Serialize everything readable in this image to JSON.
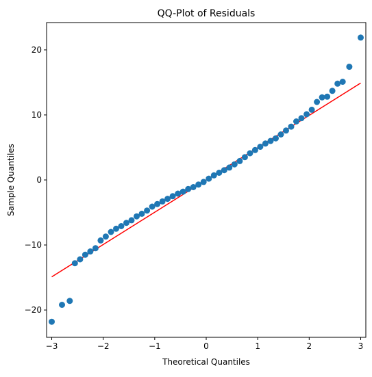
{
  "chart_data": {
    "type": "scatter",
    "title": "QQ-Plot of Residuals",
    "xlabel": "Theoretical Quantiles",
    "ylabel": "Sample Quantiles",
    "xlim": [
      -3.1,
      3.1
    ],
    "ylim": [
      -24.2,
      24.2
    ],
    "xticks": [
      -3,
      -2,
      -1,
      0,
      1,
      2,
      3
    ],
    "yticks": [
      -20,
      -10,
      0,
      10,
      20
    ],
    "xtick_labels": [
      "−3",
      "−2",
      "−1",
      "0",
      "1",
      "2",
      "3"
    ],
    "ytick_labels": [
      "−20",
      "−10",
      "0",
      "10",
      "20"
    ],
    "grid": false,
    "point_color": "#1f77b4",
    "line_color": "#ff0000",
    "reference_line": {
      "x": [
        -3.0,
        3.0
      ],
      "y": [
        -14.9,
        14.9
      ]
    },
    "points": [
      [
        -3.0,
        -21.8
      ],
      [
        -2.8,
        -19.2
      ],
      [
        -2.65,
        -18.6
      ],
      [
        -2.55,
        -12.8
      ],
      [
        -2.45,
        -12.2
      ],
      [
        -2.35,
        -11.5
      ],
      [
        -2.25,
        -11.0
      ],
      [
        -2.15,
        -10.5
      ],
      [
        -2.05,
        -9.3
      ],
      [
        -1.95,
        -8.7
      ],
      [
        -1.85,
        -8.0
      ],
      [
        -1.75,
        -7.5
      ],
      [
        -1.65,
        -7.1
      ],
      [
        -1.55,
        -6.6
      ],
      [
        -1.45,
        -6.2
      ],
      [
        -1.35,
        -5.6
      ],
      [
        -1.25,
        -5.2
      ],
      [
        -1.15,
        -4.7
      ],
      [
        -1.05,
        -4.1
      ],
      [
        -0.95,
        -3.7
      ],
      [
        -0.85,
        -3.3
      ],
      [
        -0.75,
        -2.9
      ],
      [
        -0.65,
        -2.5
      ],
      [
        -0.55,
        -2.1
      ],
      [
        -0.45,
        -1.8
      ],
      [
        -0.35,
        -1.4
      ],
      [
        -0.25,
        -1.1
      ],
      [
        -0.15,
        -0.7
      ],
      [
        -0.05,
        -0.3
      ],
      [
        0.05,
        0.2
      ],
      [
        0.15,
        0.7
      ],
      [
        0.25,
        1.1
      ],
      [
        0.35,
        1.5
      ],
      [
        0.45,
        1.9
      ],
      [
        0.55,
        2.4
      ],
      [
        0.65,
        2.9
      ],
      [
        0.75,
        3.5
      ],
      [
        0.85,
        4.1
      ],
      [
        0.95,
        4.6
      ],
      [
        1.05,
        5.1
      ],
      [
        1.15,
        5.6
      ],
      [
        1.25,
        6.0
      ],
      [
        1.35,
        6.4
      ],
      [
        1.45,
        7.0
      ],
      [
        1.55,
        7.6
      ],
      [
        1.65,
        8.2
      ],
      [
        1.75,
        9.0
      ],
      [
        1.85,
        9.5
      ],
      [
        1.95,
        10.1
      ],
      [
        2.05,
        10.8
      ],
      [
        2.15,
        12.0
      ],
      [
        2.25,
        12.7
      ],
      [
        2.35,
        12.8
      ],
      [
        2.45,
        13.7
      ],
      [
        2.55,
        14.8
      ],
      [
        2.65,
        15.1
      ],
      [
        2.78,
        17.4
      ],
      [
        3.0,
        21.9
      ]
    ]
  }
}
